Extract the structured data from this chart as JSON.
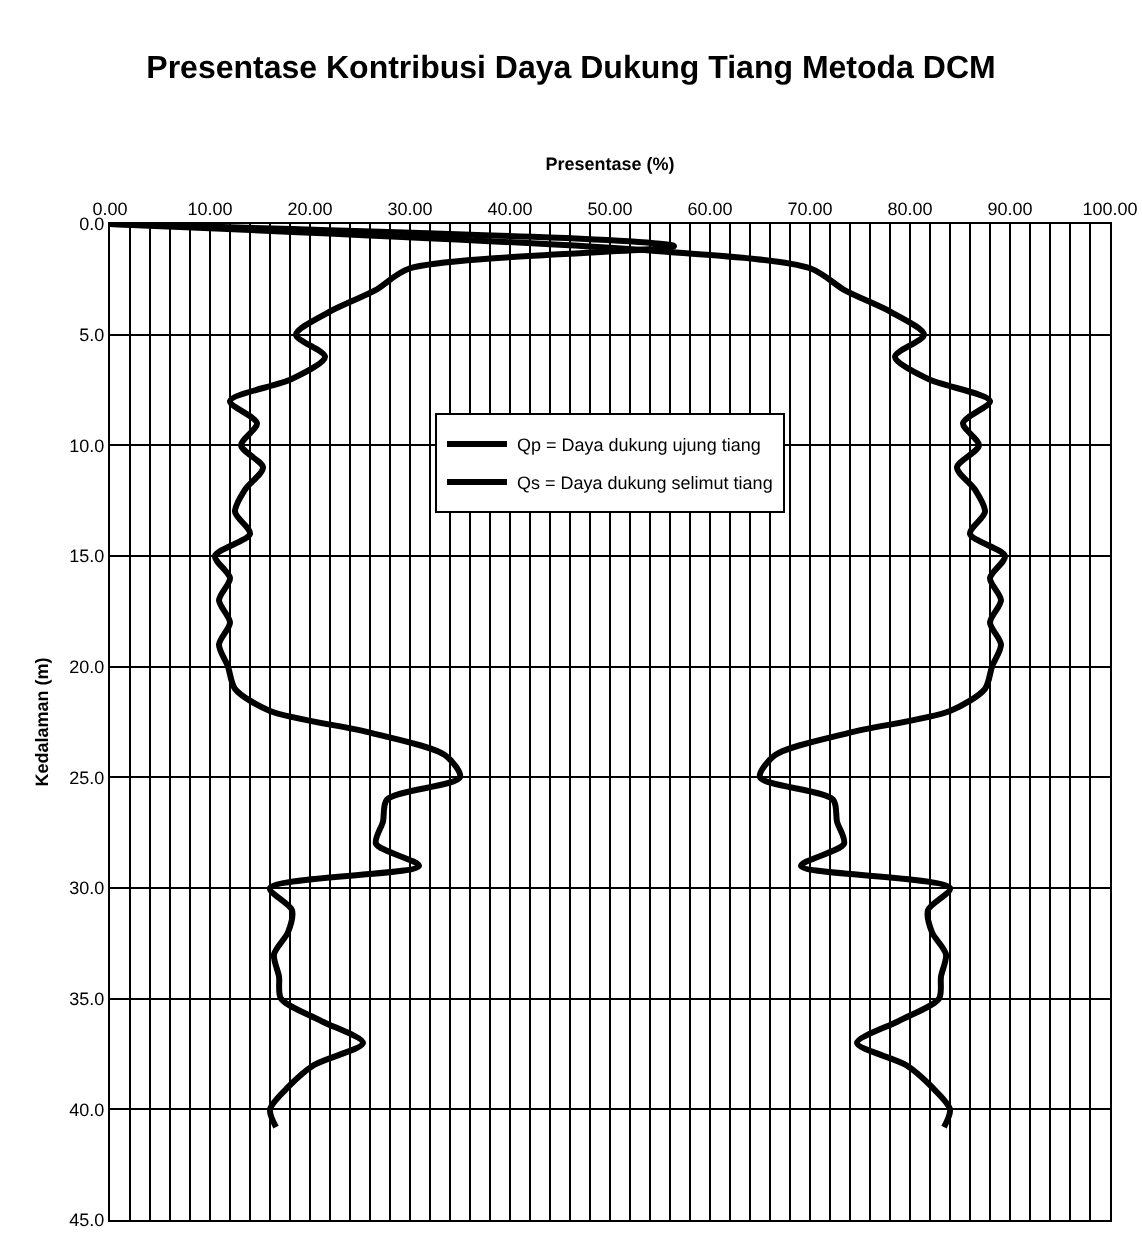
{
  "chart_data": {
    "type": "line",
    "title": "Presentase Kontribusi Daya Dukung Tiang Metoda DCM",
    "xlabel": "Presentase (%)",
    "ylabel": "Kedalaman (m)",
    "xlim": [
      0,
      100
    ],
    "ylim": [
      45,
      0
    ],
    "xticks": [
      {
        "value": 0,
        "label": "0.00"
      },
      {
        "value": 2,
        "label": null
      },
      {
        "value": 4,
        "label": null
      },
      {
        "value": 6,
        "label": null
      },
      {
        "value": 8,
        "label": null
      },
      {
        "value": 10,
        "label": "10.00"
      },
      {
        "value": 12,
        "label": null
      },
      {
        "value": 14,
        "label": null
      },
      {
        "value": 16,
        "label": null
      },
      {
        "value": 18,
        "label": null
      },
      {
        "value": 20,
        "label": "20.00"
      },
      {
        "value": 22,
        "label": null
      },
      {
        "value": 24,
        "label": null
      },
      {
        "value": 26,
        "label": null
      },
      {
        "value": 28,
        "label": null
      },
      {
        "value": 30,
        "label": "30.00"
      },
      {
        "value": 32,
        "label": null
      },
      {
        "value": 34,
        "label": null
      },
      {
        "value": 36,
        "label": null
      },
      {
        "value": 38,
        "label": null
      },
      {
        "value": 40,
        "label": "40.00"
      },
      {
        "value": 42,
        "label": null
      },
      {
        "value": 44,
        "label": null
      },
      {
        "value": 46,
        "label": null
      },
      {
        "value": 48,
        "label": null
      },
      {
        "value": 50,
        "label": "50.00"
      },
      {
        "value": 52,
        "label": null
      },
      {
        "value": 54,
        "label": null
      },
      {
        "value": 56,
        "label": null
      },
      {
        "value": 58,
        "label": null
      },
      {
        "value": 60,
        "label": "60.00"
      },
      {
        "value": 62,
        "label": null
      },
      {
        "value": 64,
        "label": null
      },
      {
        "value": 66,
        "label": null
      },
      {
        "value": 68,
        "label": null
      },
      {
        "value": 70,
        "label": "70.00"
      },
      {
        "value": 72,
        "label": null
      },
      {
        "value": 74,
        "label": null
      },
      {
        "value": 76,
        "label": null
      },
      {
        "value": 78,
        "label": null
      },
      {
        "value": 80,
        "label": "80.00"
      },
      {
        "value": 82,
        "label": null
      },
      {
        "value": 84,
        "label": null
      },
      {
        "value": 86,
        "label": null
      },
      {
        "value": 88,
        "label": null
      },
      {
        "value": 90,
        "label": "90.00"
      },
      {
        "value": 92,
        "label": null
      },
      {
        "value": 94,
        "label": null
      },
      {
        "value": 96,
        "label": null
      },
      {
        "value": 98,
        "label": null
      },
      {
        "value": 100,
        "label": "100.00"
      }
    ],
    "yticks": [
      {
        "value": 0,
        "label": "0.0"
      },
      {
        "value": 5,
        "label": "5.0"
      },
      {
        "value": 10,
        "label": "10.0"
      },
      {
        "value": 15,
        "label": "15.0"
      },
      {
        "value": 20,
        "label": "20.0"
      },
      {
        "value": 25,
        "label": "25.0"
      },
      {
        "value": 30,
        "label": "30.0"
      },
      {
        "value": 35,
        "label": "35.0"
      },
      {
        "value": 40,
        "label": "40.0"
      },
      {
        "value": 45,
        "label": "45.0"
      }
    ],
    "grid": true,
    "legend": "top",
    "marker": "none",
    "line_style": "solid",
    "series": [
      {
        "name": "Qp = Daya dukung ujung tiang",
        "color": "#000000",
        "x": [
          0,
          56.4,
          30,
          26.5,
          21.8,
          18.6,
          21.5,
          18.2,
          12,
          14.7,
          13.1,
          15.3,
          13.5,
          12.5,
          14,
          10.5,
          12,
          10.9,
          12,
          10.9,
          11.8,
          12.5,
          16,
          26.2,
          33.5,
          35,
          27.7,
          27.3,
          26.6,
          30.9,
          16,
          18.2,
          17.8,
          16.4,
          16.9,
          17.1,
          21.1,
          25.3,
          20.4,
          17.8,
          16,
          16.6
        ],
        "values": [
          0,
          1,
          2,
          3,
          4,
          5,
          6,
          7,
          8,
          9,
          10,
          11,
          12,
          13,
          14,
          15,
          16,
          17,
          18,
          19,
          20,
          21,
          22,
          23,
          24,
          25,
          26,
          27,
          28,
          29,
          30,
          31,
          32,
          33,
          34,
          35,
          36,
          37,
          38,
          39,
          40,
          40.8
        ]
      },
      {
        "name": "Qs = Daya dukung selimut tiang",
        "color": "#000000",
        "x": [
          0,
          54,
          70,
          73.5,
          78.2,
          81.4,
          78.5,
          81.8,
          88,
          85.3,
          86.9,
          84.7,
          86.5,
          87.5,
          86,
          89.5,
          88,
          89.1,
          88,
          89.1,
          88.2,
          87.5,
          84,
          73.8,
          66.5,
          65,
          72.3,
          72.7,
          73.4,
          69.1,
          84,
          81.8,
          82.2,
          83.6,
          83.1,
          82.9,
          78.9,
          74.7,
          79.6,
          82.2,
          84,
          83.4
        ],
        "values": [
          0,
          1.2,
          2,
          3,
          4,
          5,
          6,
          7,
          8,
          9,
          10,
          11,
          12,
          13,
          14,
          15,
          16,
          17,
          18,
          19,
          20,
          21,
          22,
          23,
          24,
          25,
          26,
          27,
          28,
          29,
          30,
          31,
          32,
          33,
          34,
          35,
          36,
          37,
          38,
          39,
          40,
          40.8
        ]
      }
    ]
  }
}
